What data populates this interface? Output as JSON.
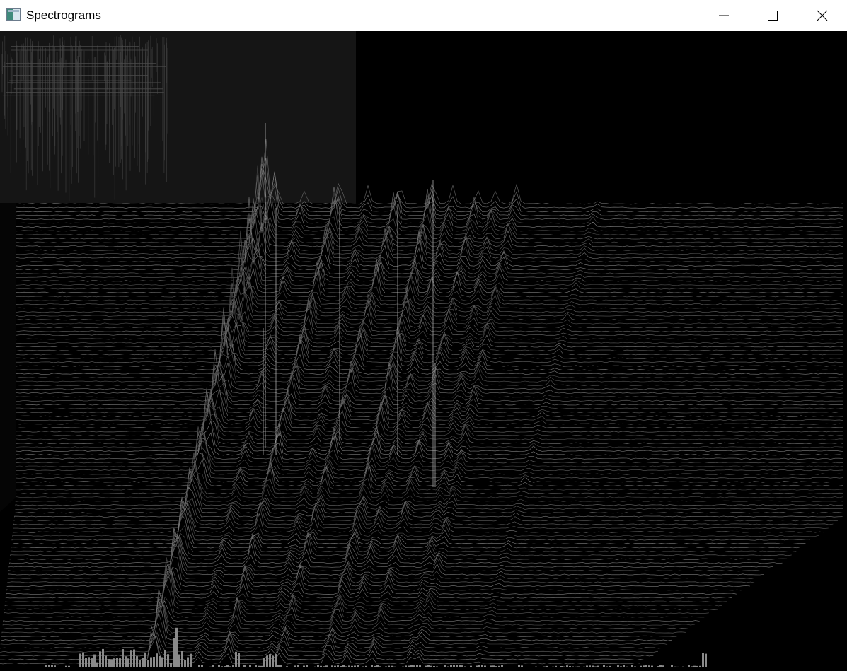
{
  "window": {
    "title": "Spectrograms",
    "app_icon": "application-icon",
    "buttons": {
      "minimize_icon": "minimize-icon",
      "maximize_icon": "maximize-icon",
      "close_icon": "close-icon"
    }
  },
  "colors": {
    "titlebar_bg": "#ffffff",
    "canvas_bg": "#000000",
    "spectrogram_panel": "#151515",
    "waterfall_lines": "#9a9a9a"
  }
}
